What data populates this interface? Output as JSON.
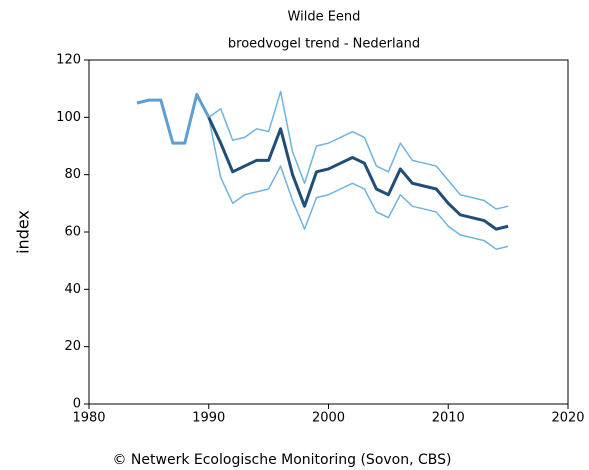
{
  "chart_data": {
    "type": "line",
    "title": "Wilde Eend",
    "subtitle": "broedvogel trend - Nederland",
    "y_label": "index",
    "footer": "© Netwerk Ecologische Monitoring (Sovon, CBS)",
    "x": [
      1984,
      1985,
      1986,
      1987,
      1988,
      1989,
      1990,
      1991,
      1992,
      1993,
      1994,
      1995,
      1996,
      1997,
      1998,
      1999,
      2000,
      2001,
      2002,
      2003,
      2004,
      2005,
      2006,
      2007,
      2008,
      2009,
      2010,
      2011,
      2012,
      2013,
      2014,
      2015
    ],
    "series": [
      {
        "color": "#5aa0d6",
        "linewidth": 3,
        "values": [
          105,
          106,
          106,
          91,
          91,
          108,
          100,
          null,
          null,
          null,
          null,
          null,
          null,
          null,
          null,
          null,
          null,
          null,
          null,
          null,
          null,
          null,
          null,
          null,
          null,
          null,
          null,
          null,
          null,
          null,
          null,
          null
        ]
      },
      {
        "color": "#6fb4dc",
        "linewidth": 1.5,
        "values": [
          null,
          null,
          null,
          null,
          null,
          null,
          100,
          103,
          92,
          93,
          96,
          95,
          109,
          88,
          77,
          90,
          91,
          93,
          95,
          93,
          83,
          81,
          91,
          85,
          84,
          83,
          78,
          73,
          72,
          71,
          68,
          69
        ]
      },
      {
        "color": "#6fb4dc",
        "linewidth": 1.5,
        "values": [
          null,
          null,
          null,
          null,
          null,
          null,
          100,
          79,
          70,
          73,
          74,
          75,
          83,
          71,
          61,
          72,
          73,
          75,
          77,
          75,
          67,
          65,
          73,
          69,
          68,
          67,
          62,
          59,
          58,
          57,
          54,
          55
        ]
      },
      {
        "color": "#1f4e79",
        "linewidth": 3,
        "values": [
          null,
          null,
          null,
          null,
          null,
          null,
          100,
          91,
          81,
          83,
          85,
          85,
          96,
          80,
          69,
          81,
          82,
          84,
          86,
          84,
          75,
          73,
          82,
          77,
          76,
          75,
          70,
          66,
          65,
          64,
          61,
          62
        ]
      }
    ],
    "xlim": [
      1980,
      2020
    ],
    "xticks": [
      1980,
      1990,
      2000,
      2010,
      2020
    ],
    "ylim": [
      0,
      120
    ],
    "yticks": [
      0,
      20,
      40,
      60,
      80,
      100,
      120
    ]
  }
}
